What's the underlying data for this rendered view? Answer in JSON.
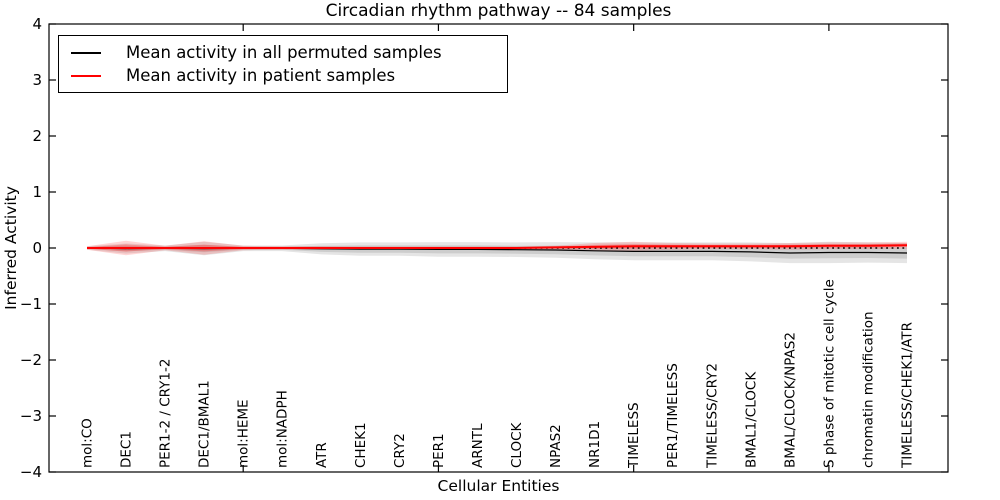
{
  "chart_data": {
    "type": "line",
    "title": "Circadian rhythm pathway -- 84 samples",
    "xlabel": "Cellular Entities",
    "ylabel": "Inferred Activity",
    "ylim": [
      -4,
      4
    ],
    "yticks": [
      4,
      3,
      2,
      1,
      0,
      -1,
      -2,
      -3,
      -4
    ],
    "ytick_labels": [
      "4",
      "3",
      "2",
      "1",
      "0",
      "−1",
      "−2",
      "−3",
      "−4"
    ],
    "xtick_values": [
      5,
      10,
      15,
      20
    ],
    "grid": false,
    "background": "#ffffff",
    "categories": [
      "mol:CO",
      "DEC1",
      "PER1-2 / CRY1-2",
      "DEC1/BMAL1",
      "mol:HEME",
      "mol:NADPH",
      "ATR",
      "CHEK1",
      "CRY2",
      "PER1",
      "ARNTL",
      "CLOCK",
      "NPAS2",
      "NR1D1",
      "TIMELESS",
      "PER1/TIMELESS",
      "TIMELESS/CRY2",
      "BMAL1/CLOCK",
      "BMAL/CLOCK/NPAS2",
      "S phase of mitotic cell cycle",
      "chromatin modification",
      "TIMELESS/CHEK1/ATR"
    ],
    "series": [
      {
        "name": "Mean activity in all permuted samples",
        "color": "#000000",
        "line_style": "solid",
        "line_width": 1.2,
        "band_color": "#000000",
        "band_opacity": 0.1,
        "values": [
          0,
          -0.01,
          -0.005,
          -0.01,
          -0.005,
          -0.005,
          -0.015,
          -0.02,
          -0.02,
          -0.025,
          -0.025,
          -0.03,
          -0.035,
          -0.05,
          -0.06,
          -0.06,
          -0.06,
          -0.07,
          -0.09,
          -0.08,
          -0.08,
          -0.09
        ],
        "band_halfwidth": [
          0.03,
          0.09,
          0.05,
          0.12,
          0.05,
          0.05,
          0.1,
          0.12,
          0.12,
          0.13,
          0.13,
          0.13,
          0.14,
          0.15,
          0.16,
          0.16,
          0.16,
          0.17,
          0.18,
          0.19,
          0.18,
          0.18
        ]
      },
      {
        "name": "Mean activity in patient samples",
        "color": "#ff0000",
        "line_style": "solid",
        "line_width": 2,
        "band_color": "#ff0000",
        "band_opacity": 0.16,
        "values": [
          0,
          0,
          0,
          0,
          0,
          0,
          0,
          0,
          0,
          0,
          0,
          0,
          0.01,
          0.02,
          0.03,
          0.03,
          0.03,
          0.03,
          0.03,
          0.04,
          0.04,
          0.05
        ],
        "band_halfwidth": [
          0.03,
          0.13,
          0.04,
          0.12,
          0.04,
          0.03,
          0.03,
          0.025,
          0.025,
          0.025,
          0.025,
          0.025,
          0.03,
          0.07,
          0.08,
          0.06,
          0.05,
          0.05,
          0.06,
          0.06,
          0.06,
          0.06
        ]
      }
    ],
    "zero_line": {
      "value": 0,
      "style": "dotted",
      "color": "#000000"
    },
    "legend_position": "upper left"
  }
}
